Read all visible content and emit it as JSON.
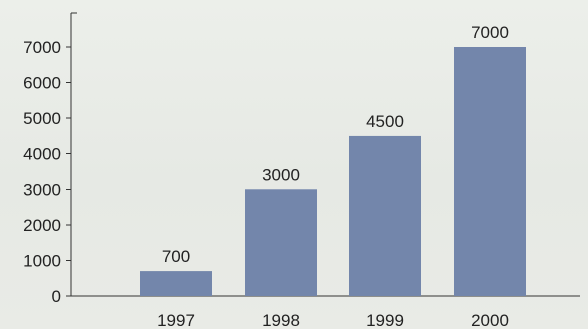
{
  "chart_data": {
    "type": "bar",
    "title": "",
    "xlabel": "",
    "ylabel": "",
    "categories": [
      "1997",
      "1998",
      "1999",
      "2000"
    ],
    "values": [
      700,
      3000,
      4500,
      7000
    ],
    "data_labels": [
      "700",
      "3000",
      "4500",
      "7000"
    ],
    "y_ticks": [
      0,
      1000,
      2000,
      3000,
      4000,
      5000,
      6000,
      7000
    ],
    "ylim": [
      0,
      7500
    ],
    "grid": false,
    "legend": "none",
    "bar_color": "#7386ab",
    "background_color": "#e8ebe6"
  }
}
